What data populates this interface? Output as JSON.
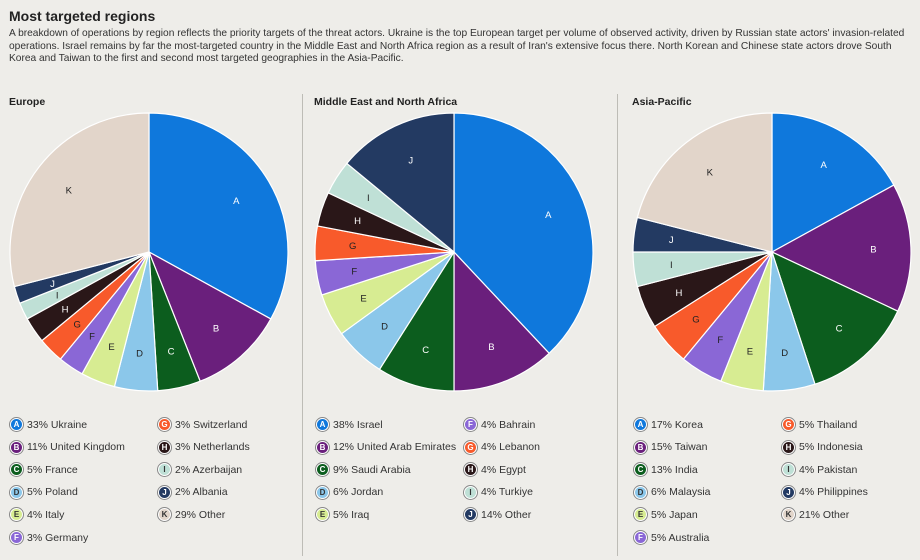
{
  "header": {
    "title": "Most targeted regions",
    "description": "A breakdown of operations by region reflects the priority targets of the threat actors. Ukraine is the top European target per volume of observed activity, driven by Russian state actors' invasion-related operations. Israel remains by far the most-targeted country in the Middle East and North Africa region as a result of Iran's extensive focus there. North Korean and Chinese state actors drove South Korea and Taiwan to the first and second most targeted geographies in the Asia-Pacific."
  },
  "colors": {
    "A": "#0f78dc",
    "B": "#6a1f7c",
    "C": "#0c5d1e",
    "D": "#8bc7ea",
    "E": "#d7ec92",
    "F": "#8a67d6",
    "G": "#f85a2b",
    "H": "#2a1718",
    "I": "#bfe0d6",
    "J": "#233a62",
    "K": "#e2d5ca"
  },
  "chart_data": [
    {
      "type": "pie",
      "title": "Europe",
      "slices": [
        {
          "letter": "A",
          "value": 33,
          "label": "33% Ukraine"
        },
        {
          "letter": "B",
          "value": 11,
          "label": "11% United Kingdom"
        },
        {
          "letter": "C",
          "value": 5,
          "label": "5% France"
        },
        {
          "letter": "D",
          "value": 5,
          "label": "5% Poland"
        },
        {
          "letter": "E",
          "value": 4,
          "label": "4% Italy"
        },
        {
          "letter": "F",
          "value": 3,
          "label": "3% Germany"
        },
        {
          "letter": "G",
          "value": 3,
          "label": "3% Switzerland"
        },
        {
          "letter": "H",
          "value": 3,
          "label": "3% Netherlands"
        },
        {
          "letter": "I",
          "value": 2,
          "label": "2% Azerbaijan"
        },
        {
          "letter": "J",
          "value": 2,
          "label": "2% Albania"
        },
        {
          "letter": "K",
          "value": 29,
          "label": "29% Other"
        }
      ]
    },
    {
      "type": "pie",
      "title": "Middle East and North Africa",
      "slices": [
        {
          "letter": "A",
          "value": 38,
          "label": "38% Israel"
        },
        {
          "letter": "B",
          "value": 12,
          "label": "12% United Arab Emirates"
        },
        {
          "letter": "C",
          "value": 9,
          "label": "9% Saudi Arabia"
        },
        {
          "letter": "D",
          "value": 6,
          "label": "6% Jordan"
        },
        {
          "letter": "E",
          "value": 5,
          "label": "5% Iraq"
        },
        {
          "letter": "F",
          "value": 4,
          "label": "4% Bahrain"
        },
        {
          "letter": "G",
          "value": 4,
          "label": "4% Lebanon"
        },
        {
          "letter": "H",
          "value": 4,
          "label": "4% Egypt"
        },
        {
          "letter": "I",
          "value": 4,
          "label": "4% Turkiye"
        },
        {
          "letter": "J",
          "value": 14,
          "label": "14% Other"
        }
      ]
    },
    {
      "type": "pie",
      "title": "Asia-Pacific",
      "slices": [
        {
          "letter": "A",
          "value": 17,
          "label": "17% Korea"
        },
        {
          "letter": "B",
          "value": 15,
          "label": "15% Taiwan"
        },
        {
          "letter": "C",
          "value": 13,
          "label": "13% India"
        },
        {
          "letter": "D",
          "value": 6,
          "label": "6% Malaysia"
        },
        {
          "letter": "E",
          "value": 5,
          "label": "5% Japan"
        },
        {
          "letter": "F",
          "value": 5,
          "label": "5% Australia"
        },
        {
          "letter": "G",
          "value": 5,
          "label": "5% Thailand"
        },
        {
          "letter": "H",
          "value": 5,
          "label": "5% Indonesia"
        },
        {
          "letter": "I",
          "value": 4,
          "label": "4% Pakistan"
        },
        {
          "letter": "J",
          "value": 4,
          "label": "4% Philippines"
        },
        {
          "letter": "K",
          "value": 21,
          "label": "21% Other"
        }
      ]
    }
  ]
}
